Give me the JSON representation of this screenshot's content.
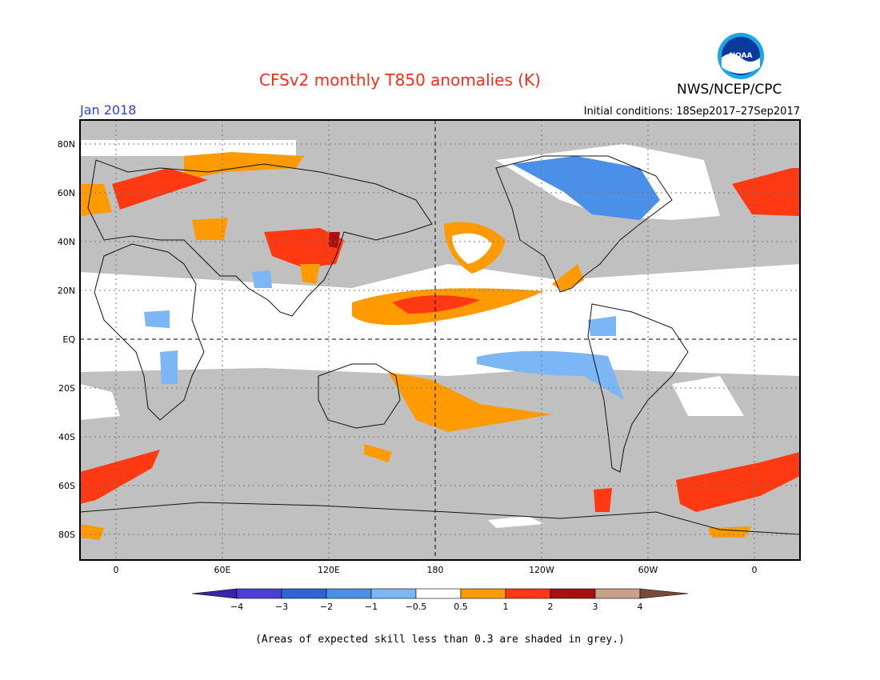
{
  "header": {
    "title": "CFSv2 monthly T850 anomalies (K)",
    "month": "Jan 2018",
    "org": "NWS/NCEP/CPC",
    "initial_conditions": "Initial conditions: 18Sep2017–27Sep2017",
    "logo_text": "NOAA"
  },
  "map": {
    "lat_labels": [
      "80N",
      "60N",
      "40N",
      "20N",
      "EQ",
      "20S",
      "40S",
      "60S",
      "80S"
    ],
    "lon_labels": [
      "0",
      "60E",
      "120E",
      "180",
      "120W",
      "60W",
      "0"
    ]
  },
  "colorbar": {
    "tick_labels": [
      "−4",
      "−3",
      "−2",
      "−1",
      "−0.5",
      "0.5",
      "1",
      "2",
      "3",
      "4"
    ],
    "colors": [
      "#3d22a5",
      "#4a40d8",
      "#2d64d6",
      "#4a8fe8",
      "#7cb6f5",
      "#ffffff",
      "#ff9a00",
      "#ff3a12",
      "#a90f0f",
      "#c6a088",
      "#7a4a3a"
    ]
  },
  "footnote": "(Areas of expected skill less than 0.3 are shaded in grey.)",
  "colors": {
    "grey_skill": "#c0c0c0",
    "title": "#ff2a1a",
    "month": "#2f3ee0"
  }
}
